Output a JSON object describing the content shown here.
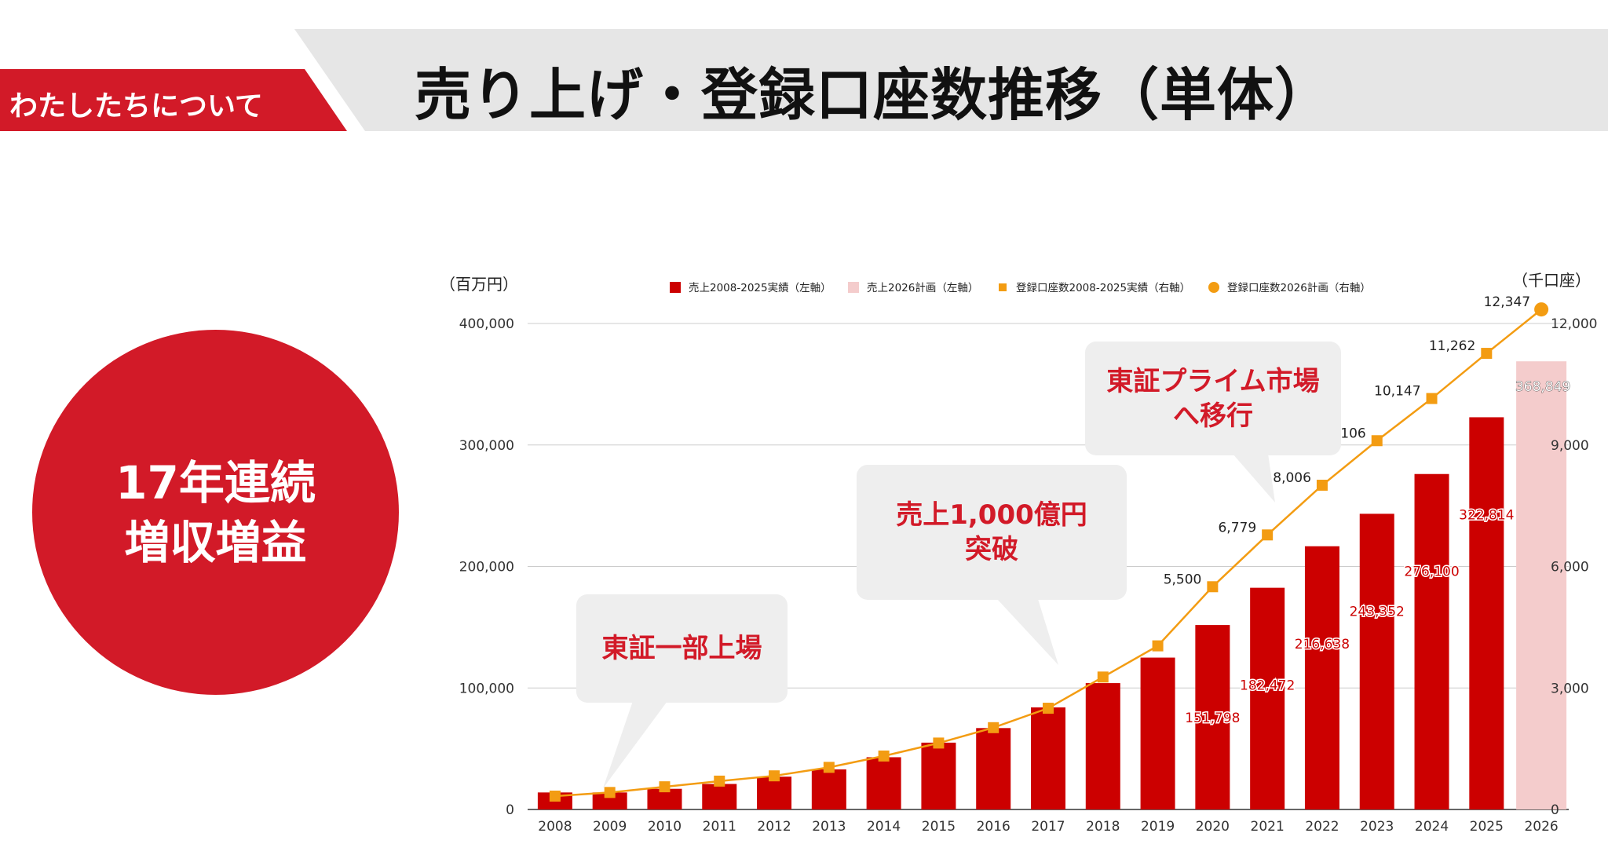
{
  "header": {
    "section_label": "わたしたちについて",
    "title": "売り上げ・登録口座数推移（単体）"
  },
  "badge": {
    "line1": "17年連続",
    "line2": "増収増益"
  },
  "colors": {
    "brand_red": "#d21a28",
    "bar_actual": "#cc0000",
    "bar_plan": "#f4cccc",
    "line_orange": "#f39c12"
  },
  "callouts": {
    "listing": "東証一部上場",
    "sales_line1": "売上1,000億円",
    "sales_line2": "突破",
    "prime_line1": "東証プライム市場",
    "prime_line2": "へ移行"
  },
  "chart_data": {
    "type": "bar",
    "title": "",
    "left_axis_unit": "（百万円）",
    "right_axis_unit": "（千口座）",
    "categories": [
      "2008",
      "2009",
      "2010",
      "2011",
      "2012",
      "2013",
      "2014",
      "2015",
      "2016",
      "2017",
      "2018",
      "2019",
      "2020",
      "2021",
      "2022",
      "2023",
      "2024",
      "2025",
      "2026"
    ],
    "left_axis": {
      "min": 0,
      "max": 400000,
      "ticks": [
        0,
        100000,
        200000,
        300000,
        400000
      ],
      "tick_labels": [
        "0",
        "100,000",
        "200,000",
        "300,000",
        "400,000"
      ]
    },
    "right_axis": {
      "min": 0,
      "max": 12000,
      "ticks": [
        0,
        3000,
        6000,
        9000,
        12000
      ],
      "tick_labels": [
        "0",
        "3,000",
        "6,000",
        "9,000",
        "12,000"
      ]
    },
    "legend_position": "top",
    "grid": true,
    "series": [
      {
        "name": "売上2008-2025実績（左軸）",
        "kind": "bar",
        "axis": "left",
        "values": [
          14000,
          14000,
          17000,
          21000,
          27000,
          33000,
          43000,
          55000,
          67000,
          84000,
          104000,
          125000,
          151798,
          182472,
          216638,
          243352,
          276100,
          322814,
          null
        ],
        "labels": [
          null,
          null,
          null,
          null,
          null,
          null,
          null,
          null,
          null,
          null,
          null,
          null,
          "151,798",
          "182,472",
          "216,638",
          "243,352",
          "276,100",
          "322,814",
          null
        ]
      },
      {
        "name": "売上2026計画（左軸）",
        "kind": "bar",
        "axis": "left",
        "values": [
          null,
          null,
          null,
          null,
          null,
          null,
          null,
          null,
          null,
          null,
          null,
          null,
          null,
          null,
          null,
          null,
          null,
          null,
          368849
        ],
        "labels": [
          null,
          null,
          null,
          null,
          null,
          null,
          null,
          null,
          null,
          null,
          null,
          null,
          null,
          null,
          null,
          null,
          null,
          null,
          "368,849"
        ]
      },
      {
        "name": "登録口座数2008-2025実績（右軸）",
        "kind": "line",
        "axis": "right",
        "values": [
          330,
          420,
          560,
          700,
          830,
          1040,
          1320,
          1640,
          2020,
          2500,
          3270,
          4040,
          5500,
          6779,
          8006,
          9106,
          10147,
          11262,
          null
        ],
        "labels": [
          null,
          null,
          null,
          null,
          null,
          null,
          null,
          null,
          null,
          null,
          null,
          null,
          "5,500",
          "6,779",
          "8,006",
          "9,106",
          "10,147",
          "11,262",
          null
        ]
      },
      {
        "name": "登録口座数2026計画（右軸）",
        "kind": "line",
        "axis": "right",
        "values": [
          null,
          null,
          null,
          null,
          null,
          null,
          null,
          null,
          null,
          null,
          null,
          null,
          null,
          null,
          null,
          null,
          null,
          11262,
          12347
        ],
        "labels": [
          null,
          null,
          null,
          null,
          null,
          null,
          null,
          null,
          null,
          null,
          null,
          null,
          null,
          null,
          null,
          null,
          null,
          null,
          "12,347"
        ]
      }
    ]
  }
}
